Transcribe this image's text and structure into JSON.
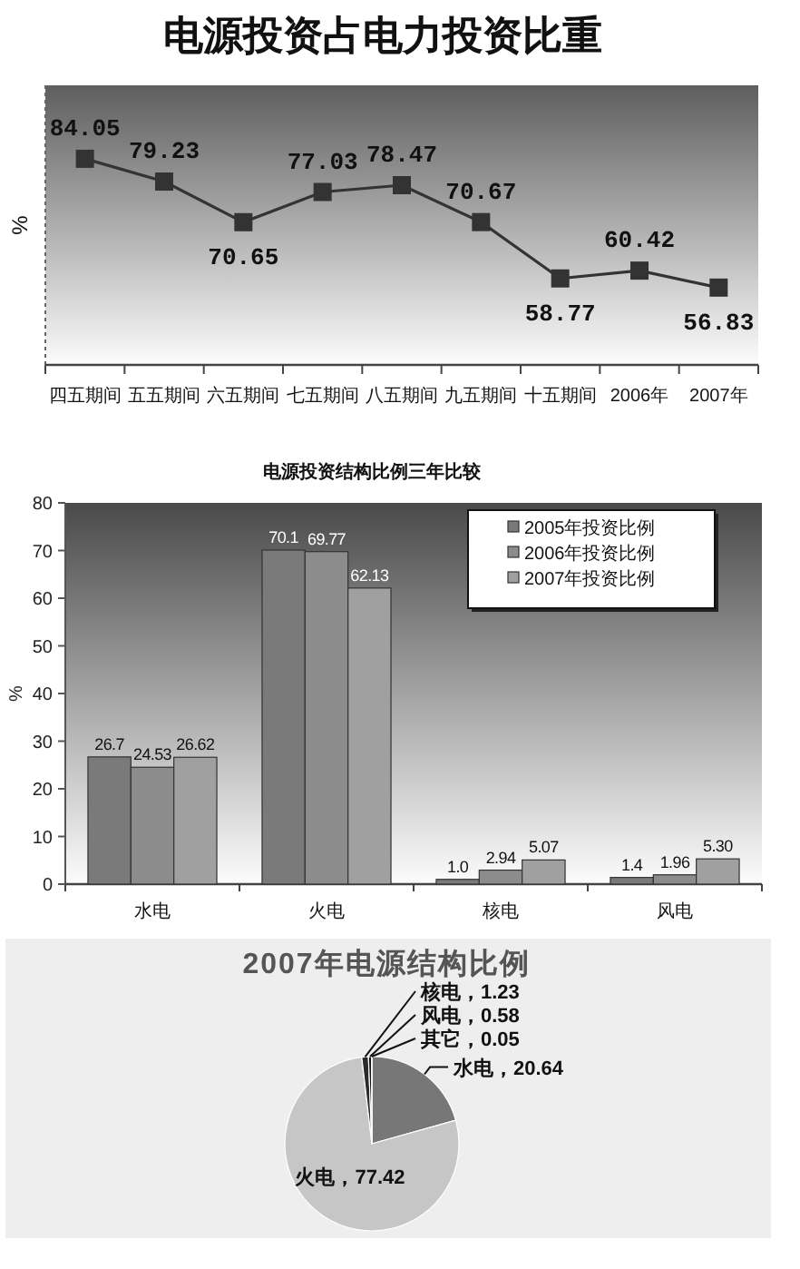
{
  "chart_data": [
    {
      "type": "line",
      "title": "电源投资占电力投资比重",
      "ylabel": "%",
      "categories": [
        "四五期间",
        "五五期间",
        "六五期间",
        "七五期间",
        "八五期间",
        "九五期间",
        "十五期间",
        "2006年",
        "2007年"
      ],
      "series": [
        {
          "color": "#333333",
          "values": [
            84.05,
            79.23,
            70.65,
            77.03,
            78.47,
            70.67,
            58.77,
            60.42,
            56.83
          ]
        }
      ],
      "marker": "square",
      "data_labels": true,
      "tick_labels": "x"
    },
    {
      "type": "bar",
      "title": "电源投资结构比例三年比较",
      "ylabel": "%",
      "categories": [
        "水电",
        "火电",
        "核电",
        "风电"
      ],
      "ylim": [
        0,
        80
      ],
      "yticks": [
        0,
        10,
        20,
        30,
        40,
        50,
        60,
        70,
        80
      ],
      "legend": "top right",
      "series": [
        {
          "name": "2005年投资比例",
          "color": "#7a7a7a",
          "values": [
            26.7,
            70.1,
            1.0,
            1.4
          ],
          "value_labels": [
            "26.7",
            "70.1",
            "1.0",
            "1.4"
          ]
        },
        {
          "name": "2006年投资比例",
          "color": "#8c8c8c",
          "values": [
            24.53,
            69.77,
            2.94,
            1.96
          ],
          "value_labels": [
            "24.53",
            "69.77",
            "2.94",
            "1.96"
          ]
        },
        {
          "name": "2007年投资比例",
          "color": "#a0a0a0",
          "values": [
            26.62,
            62.13,
            5.07,
            5.3
          ],
          "value_labels": [
            "26.62",
            "62.13",
            "5.07",
            "5.30"
          ]
        }
      ]
    },
    {
      "type": "pie",
      "title": "2007年电源结构比例",
      "categories": [
        "水电",
        "火电",
        "核电",
        "风电",
        "其它"
      ],
      "values": [
        20.64,
        77.42,
        1.23,
        0.58,
        0.05
      ],
      "value_labels": [
        "，20.64",
        "，77.42",
        "，1.23",
        "，0.58",
        "，0.05"
      ],
      "colors": [
        "#777777",
        "#c6c6c6",
        "#2a2a2a",
        "#111111",
        "#444444"
      ]
    }
  ]
}
